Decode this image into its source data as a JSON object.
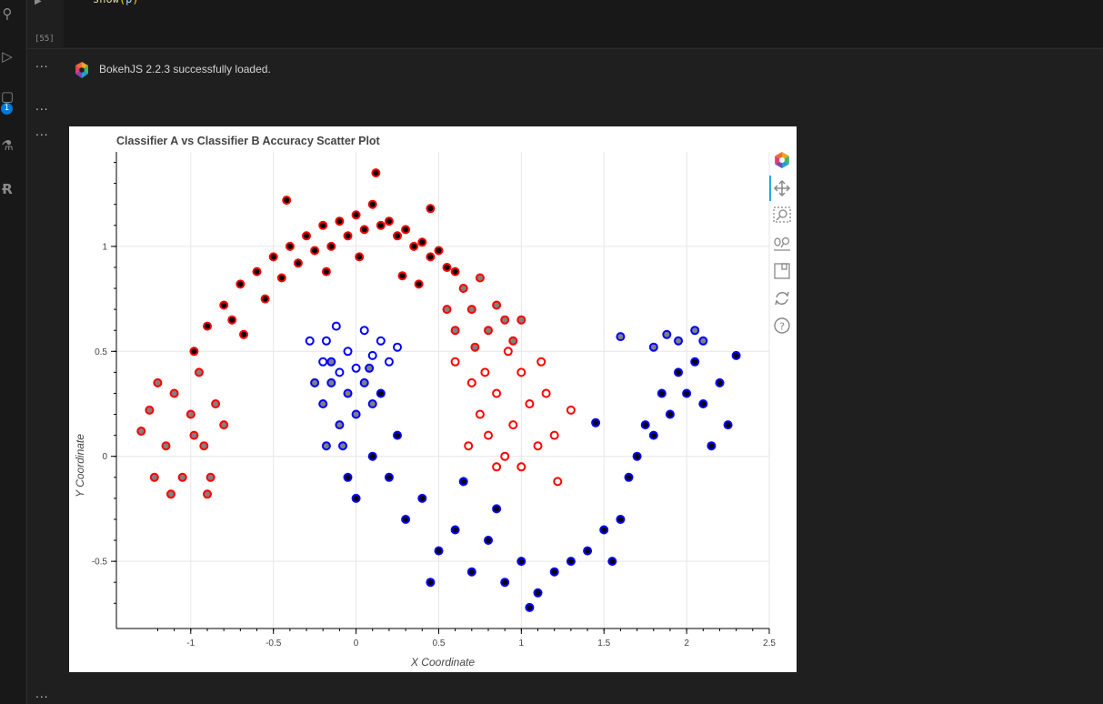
{
  "editor": {
    "code_func": "show",
    "code_open": "(",
    "code_arg": "p",
    "code_close": ")",
    "run_marker": "▶",
    "execution_count": "[55]",
    "ellipsis": "...",
    "output_message": "BokehJS 2.2.3 successfully loaded."
  },
  "activity_bar": {
    "badge": "1",
    "icons": [
      "source-control-icon",
      "run-debug-icon",
      "extensions-icon",
      "testing-icon",
      "r-language-icon"
    ]
  },
  "toolbar": {
    "tools": [
      "bokeh-logo-icon",
      "pan-icon",
      "box-zoom-icon",
      "wheel-zoom-icon",
      "save-icon",
      "reset-icon",
      "help-icon"
    ]
  },
  "colors": {
    "class_a": "#ff0000",
    "class_b": "#0000ff",
    "both_correct_fill": "#000000",
    "single_correct_fill": "#808080"
  },
  "chart_data": {
    "type": "scatter",
    "title": "Classifier A vs Classifier B Accuracy Scatter Plot",
    "xlabel": "X Coordinate",
    "ylabel": "Y Coordinate",
    "xlim": [
      -1.45,
      2.5
    ],
    "ylim": [
      -0.82,
      1.45
    ],
    "xticks": [
      -1,
      -0.5,
      0,
      0.5,
      1,
      1.5,
      2,
      2.5
    ],
    "xtick_labels": [
      "-1",
      "-0.5",
      "0",
      "0.5",
      "1",
      "1.5",
      "2",
      "2.5"
    ],
    "yticks": [
      -0.5,
      0,
      0.5,
      1
    ],
    "ytick_labels": [
      "-0.5",
      "0",
      "0.5",
      "1"
    ],
    "grid": true,
    "series": [
      {
        "line_color": "#ff0000",
        "fill": "#000000",
        "points": [
          [
            -0.98,
            0.5
          ],
          [
            -0.9,
            0.62
          ],
          [
            -0.8,
            0.72
          ],
          [
            -0.75,
            0.65
          ],
          [
            -0.7,
            0.82
          ],
          [
            -0.6,
            0.88
          ],
          [
            -0.55,
            0.75
          ],
          [
            -0.5,
            0.95
          ],
          [
            -0.45,
            0.85
          ],
          [
            -0.4,
            1.0
          ],
          [
            -0.35,
            0.92
          ],
          [
            -0.3,
            1.05
          ],
          [
            -0.25,
            0.98
          ],
          [
            -0.2,
            1.1
          ],
          [
            -0.15,
            1.0
          ],
          [
            -0.1,
            1.12
          ],
          [
            -0.05,
            1.05
          ],
          [
            0.0,
            1.15
          ],
          [
            0.05,
            1.08
          ],
          [
            0.1,
            1.2
          ],
          [
            0.15,
            1.1
          ],
          [
            0.2,
            1.12
          ],
          [
            0.25,
            1.05
          ],
          [
            0.3,
            1.08
          ],
          [
            0.35,
            1.0
          ],
          [
            0.4,
            1.02
          ],
          [
            0.45,
            0.95
          ],
          [
            0.5,
            0.98
          ],
          [
            0.55,
            0.9
          ],
          [
            0.6,
            0.88
          ],
          [
            0.12,
            1.35
          ],
          [
            -0.42,
            1.22
          ],
          [
            0.45,
            1.18
          ],
          [
            -0.18,
            0.88
          ],
          [
            0.02,
            0.95
          ],
          [
            0.28,
            0.86
          ],
          [
            -0.68,
            0.58
          ],
          [
            0.38,
            0.82
          ]
        ]
      },
      {
        "line_color": "#ff0000",
        "fill": "#808080",
        "points": [
          [
            -1.25,
            0.22
          ],
          [
            -1.2,
            0.35
          ],
          [
            -1.15,
            0.05
          ],
          [
            -1.1,
            0.3
          ],
          [
            -1.05,
            -0.1
          ],
          [
            -1.0,
            0.2
          ],
          [
            -0.95,
            0.4
          ],
          [
            -0.92,
            0.05
          ],
          [
            -0.88,
            -0.1
          ],
          [
            -0.85,
            0.25
          ],
          [
            -0.8,
            0.15
          ],
          [
            -1.22,
            -0.1
          ],
          [
            -1.12,
            -0.18
          ],
          [
            -0.98,
            0.1
          ],
          [
            -0.9,
            -0.18
          ],
          [
            -1.3,
            0.12
          ],
          [
            0.65,
            0.8
          ],
          [
            0.7,
            0.7
          ],
          [
            0.75,
            0.85
          ],
          [
            0.8,
            0.6
          ],
          [
            0.85,
            0.72
          ],
          [
            0.9,
            0.65
          ],
          [
            0.95,
            0.55
          ],
          [
            0.55,
            0.7
          ],
          [
            0.6,
            0.6
          ],
          [
            1.0,
            0.65
          ],
          [
            0.72,
            0.52
          ]
        ]
      },
      {
        "line_color": "#ff0000",
        "fill": "#ffffff",
        "points": [
          [
            0.6,
            0.45
          ],
          [
            0.7,
            0.35
          ],
          [
            0.75,
            0.2
          ],
          [
            0.8,
            0.1
          ],
          [
            0.85,
            0.3
          ],
          [
            0.9,
            0.0
          ],
          [
            0.95,
            0.15
          ],
          [
            1.0,
            0.4
          ],
          [
            1.05,
            0.25
          ],
          [
            1.1,
            0.05
          ],
          [
            1.15,
            0.3
          ],
          [
            1.2,
            0.1
          ],
          [
            0.85,
            -0.05
          ],
          [
            1.0,
            -0.05
          ],
          [
            1.12,
            0.45
          ],
          [
            1.22,
            -0.12
          ],
          [
            0.68,
            0.05
          ],
          [
            1.3,
            0.22
          ],
          [
            0.78,
            0.4
          ],
          [
            0.92,
            0.5
          ]
        ]
      },
      {
        "line_color": "#0000ff",
        "fill": "#ffffff",
        "points": [
          [
            -0.18,
            0.55
          ],
          [
            -0.12,
            0.62
          ],
          [
            -0.05,
            0.5
          ],
          [
            0.05,
            0.6
          ],
          [
            0.1,
            0.48
          ],
          [
            0.15,
            0.55
          ],
          [
            -0.2,
            0.45
          ],
          [
            -0.1,
            0.4
          ],
          [
            0.0,
            0.42
          ],
          [
            0.2,
            0.45
          ],
          [
            -0.28,
            0.55
          ],
          [
            0.25,
            0.52
          ]
        ]
      },
      {
        "line_color": "#0000ff",
        "fill": "#808080",
        "points": [
          [
            -0.25,
            0.35
          ],
          [
            -0.2,
            0.25
          ],
          [
            -0.15,
            0.35
          ],
          [
            -0.1,
            0.15
          ],
          [
            -0.05,
            0.3
          ],
          [
            0.0,
            0.2
          ],
          [
            0.05,
            0.35
          ],
          [
            0.1,
            0.25
          ],
          [
            -0.18,
            0.05
          ],
          [
            -0.08,
            0.05
          ],
          [
            -0.15,
            0.45
          ],
          [
            0.08,
            0.42
          ],
          [
            1.8,
            0.52
          ],
          [
            1.88,
            0.58
          ],
          [
            1.95,
            0.55
          ],
          [
            2.05,
            0.6
          ],
          [
            2.1,
            0.55
          ],
          [
            1.6,
            0.57
          ]
        ]
      },
      {
        "line_color": "#0000ff",
        "fill": "#000000",
        "points": [
          [
            -0.05,
            -0.1
          ],
          [
            0.0,
            -0.2
          ],
          [
            0.1,
            0.0
          ],
          [
            0.2,
            -0.1
          ],
          [
            0.3,
            -0.3
          ],
          [
            0.4,
            -0.2
          ],
          [
            0.5,
            -0.45
          ],
          [
            0.6,
            -0.35
          ],
          [
            0.7,
            -0.55
          ],
          [
            0.8,
            -0.4
          ],
          [
            0.9,
            -0.6
          ],
          [
            1.0,
            -0.5
          ],
          [
            1.1,
            -0.65
          ],
          [
            1.2,
            -0.55
          ],
          [
            1.3,
            -0.5
          ],
          [
            1.4,
            -0.45
          ],
          [
            1.5,
            -0.35
          ],
          [
            1.6,
            -0.3
          ],
          [
            1.65,
            -0.1
          ],
          [
            1.7,
            0.0
          ],
          [
            1.75,
            0.15
          ],
          [
            1.8,
            0.1
          ],
          [
            1.85,
            0.3
          ],
          [
            1.9,
            0.2
          ],
          [
            1.95,
            0.4
          ],
          [
            2.0,
            0.3
          ],
          [
            2.05,
            0.45
          ],
          [
            2.1,
            0.25
          ],
          [
            2.15,
            0.05
          ],
          [
            2.2,
            0.35
          ],
          [
            2.3,
            0.48
          ],
          [
            1.05,
            -0.72
          ],
          [
            0.45,
            -0.6
          ],
          [
            1.55,
            -0.5
          ],
          [
            2.25,
            0.15
          ],
          [
            0.15,
            0.3
          ],
          [
            0.25,
            0.1
          ],
          [
            1.45,
            0.16
          ],
          [
            0.65,
            -0.12
          ],
          [
            0.85,
            -0.25
          ]
        ]
      }
    ]
  }
}
